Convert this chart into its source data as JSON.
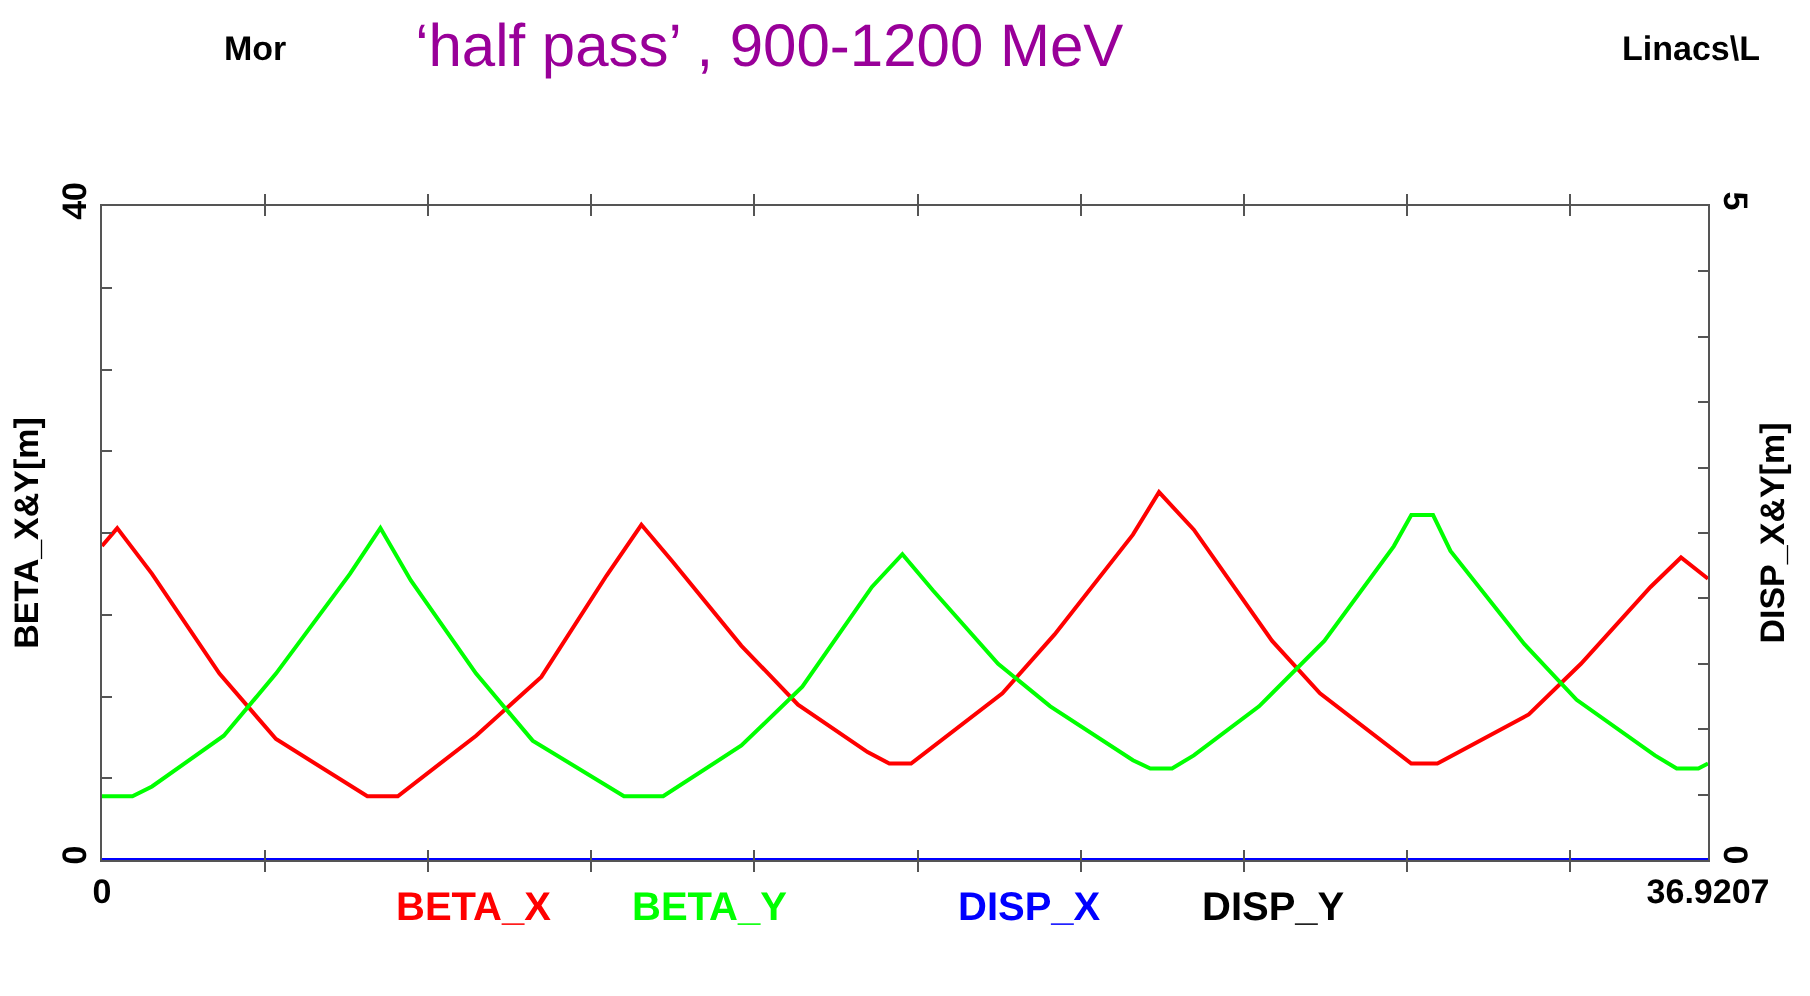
{
  "chart_data": {
    "type": "line",
    "title": "‘half pass’ , 900-1200 MeV",
    "annotations": [
      "Mor",
      "Linacs\\L"
    ],
    "ylabel": "BETA_X&Y[m]",
    "y2label": "DISP_X&Y[m]",
    "xlim": [
      0,
      36.9207
    ],
    "xticks": [
      0,
      {
        "value": 3.75,
        "label": null
      },
      {
        "value": 7.5,
        "label": null
      },
      {
        "value": 11.25,
        "label": null
      },
      {
        "value": 15,
        "label": null
      },
      {
        "value": 18.75,
        "label": null
      },
      {
        "value": 22.5,
        "label": null
      },
      {
        "value": 26.25,
        "label": null
      },
      {
        "value": 30,
        "label": null
      },
      {
        "value": 33.75,
        "label": null
      },
      36.9207
    ],
    "ylim": [
      0,
      40
    ],
    "yticks": [
      0,
      {
        "value": 5,
        "label": null
      },
      {
        "value": 10,
        "label": null
      },
      {
        "value": 15,
        "label": null
      },
      {
        "value": 20,
        "label": null
      },
      {
        "value": 25,
        "label": null
      },
      {
        "value": 30,
        "label": null
      },
      {
        "value": 35,
        "label": null
      },
      40
    ],
    "y2lim": [
      0,
      5
    ],
    "y2ticks": [
      0,
      {
        "value": 0.5,
        "label": null
      },
      {
        "value": 1,
        "label": null
      },
      {
        "value": 1.5,
        "label": null
      },
      {
        "value": 2,
        "label": null
      },
      {
        "value": 2.5,
        "label": null
      },
      {
        "value": 3,
        "label": null
      },
      {
        "value": 3.5,
        "label": null
      },
      {
        "value": 4,
        "label": null
      },
      {
        "value": 4.5,
        "label": null
      },
      5
    ],
    "legend": "bottom",
    "marker": "none",
    "line_style": "solid",
    "series": [
      {
        "name": "BETA_X",
        "color": "#ff0000",
        "x": [
          0,
          0.35,
          1.15,
          2.7,
          4.0,
          6.1,
          6.8,
          8.6,
          10.1,
          11.6,
          12.4,
          13.1,
          14.7,
          16.0,
          17.6,
          18.1,
          18.6,
          20.7,
          21.9,
          23.7,
          24.3,
          25.1,
          26.9,
          28.0,
          30.1,
          30.7,
          32.8,
          34.0,
          35.6,
          36.3,
          36.9207
        ],
        "values": [
          19.2,
          20.3,
          17.5,
          11.4,
          7.4,
          3.9,
          3.9,
          7.6,
          11.2,
          17.4,
          20.5,
          18.3,
          13.1,
          9.5,
          6.6,
          5.9,
          5.9,
          10.2,
          13.8,
          19.9,
          22.5,
          20.2,
          13.4,
          10.2,
          5.9,
          5.9,
          8.9,
          12.0,
          16.7,
          18.5,
          17.2
        ]
      },
      {
        "name": "BETA_Y",
        "color": "#00ff00",
        "x": [
          0,
          0.7,
          1.15,
          2.8,
          4.0,
          5.7,
          6.4,
          7.1,
          8.6,
          9.9,
          12.0,
          12.9,
          14.7,
          16.1,
          17.7,
          18.4,
          19.1,
          20.6,
          21.8,
          23.7,
          24.1,
          24.6,
          25.1,
          26.6,
          28.1,
          29.7,
          30.1,
          30.6,
          31.0,
          32.7,
          33.9,
          35.7,
          36.2,
          36.7,
          36.9207
        ],
        "values": [
          3.9,
          3.9,
          4.5,
          7.6,
          11.4,
          17.5,
          20.3,
          17.1,
          11.4,
          7.3,
          3.9,
          3.9,
          7.0,
          10.6,
          16.7,
          18.7,
          16.5,
          12.0,
          9.4,
          6.1,
          5.6,
          5.6,
          6.4,
          9.4,
          13.4,
          19.2,
          21.1,
          21.1,
          18.9,
          13.2,
          9.8,
          6.4,
          5.6,
          5.6,
          5.9
        ]
      },
      {
        "name": "DISP_X",
        "color": "#0000ff",
        "axis": "y2",
        "x": [
          0,
          36.9207
        ],
        "values": [
          0,
          0
        ]
      },
      {
        "name": "DISP_Y",
        "color": "#000000",
        "axis": "y2"
      }
    ]
  }
}
